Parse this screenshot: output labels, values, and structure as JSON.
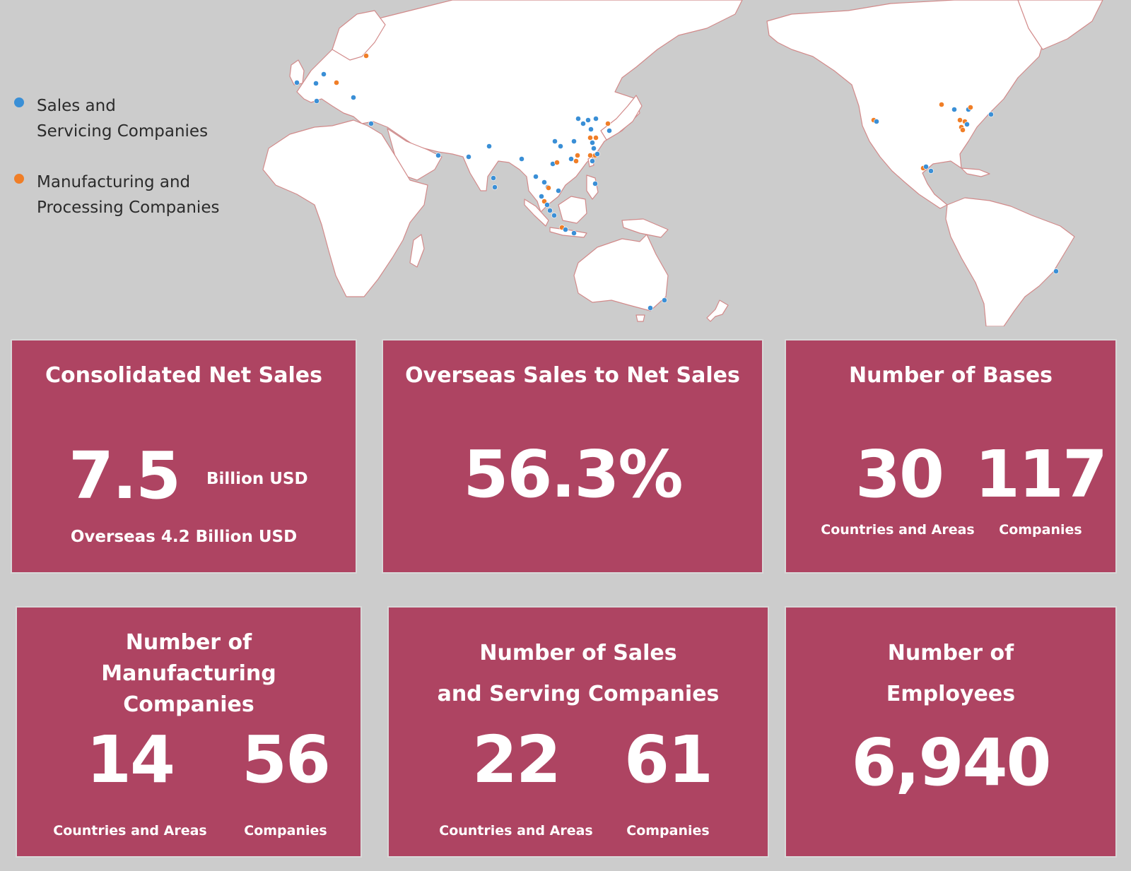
{
  "colors": {
    "background": "#cccccc",
    "land": "#ffffff",
    "coast": "#d28a8a",
    "card": "#ae4462",
    "sales_dot": "#3a8fd6",
    "manufacturing_dot": "#f07e27"
  },
  "legend": {
    "sales": "Sales and\nServicing Companies",
    "manufacturing": "Manufacturing and\nProcessing Companies"
  },
  "cards": {
    "net_sales": {
      "title": "Consolidated Net Sales",
      "value": "7.5",
      "unit": "Billion USD",
      "sub": "Overseas 4.2 Billion USD"
    },
    "overseas_ratio": {
      "title": "Overseas Sales to Net Sales",
      "value": "56.3%"
    },
    "bases": {
      "title": "Number of Bases",
      "countries_value": "30",
      "countries_label": "Countries and Areas",
      "companies_value": "117",
      "companies_label": "Companies"
    },
    "manufacturing": {
      "title": "Number of\nManufacturing\nCompanies",
      "countries_value": "14",
      "countries_label": "Countries and Areas",
      "companies_value": "56",
      "companies_label": "Companies"
    },
    "sales_companies": {
      "title": "Number of Sales\nand Serving Companies",
      "countries_value": "22",
      "countries_label": "Countries and Areas",
      "companies_value": "61",
      "companies_label": "Companies"
    },
    "employees": {
      "title": "Number of\nEmployees",
      "value": "6,940"
    }
  }
}
